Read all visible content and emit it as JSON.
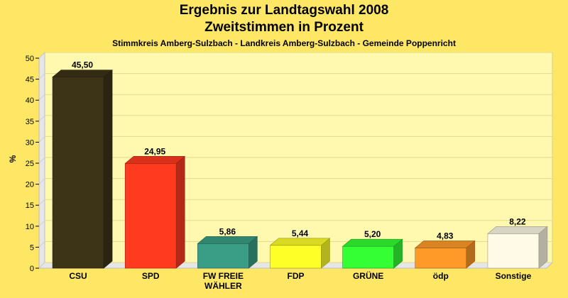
{
  "chart_data": {
    "type": "bar",
    "title": "Ergebnis zur Landtagswahl 2008",
    "subtitle": "Zweitstimmen in Prozent",
    "caption": "Stimmkreis Amberg-Sulzbach - Landkreis Amberg-Sulzbach - Gemeinde Poppenricht",
    "ylabel": "%",
    "ylim": [
      0,
      50
    ],
    "yticks": [
      0,
      5,
      10,
      15,
      20,
      25,
      30,
      35,
      40,
      45,
      50
    ],
    "grid": true,
    "categories": [
      "CSU",
      "SPD",
      "FW FREIE WÄHLER",
      "FDP",
      "GRÜNE",
      "ödp",
      "Sonstige"
    ],
    "category_lines": [
      [
        "CSU"
      ],
      [
        "SPD"
      ],
      [
        "FW FREIE",
        "WÄHLER"
      ],
      [
        "FDP"
      ],
      [
        "GRÜNE"
      ],
      [
        "ödp"
      ],
      [
        "Sonstige"
      ]
    ],
    "values": [
      45.5,
      24.95,
      5.86,
      5.44,
      5.2,
      4.83,
      8.22
    ],
    "value_labels": [
      "45,50",
      "24,95",
      "5,86",
      "5,44",
      "5,20",
      "4,83",
      "8,22"
    ],
    "colors": [
      "#3d3317",
      "#ff3a1e",
      "#3a9e86",
      "#ffff28",
      "#33ff33",
      "#ff9a28",
      "#fffbe6"
    ]
  }
}
